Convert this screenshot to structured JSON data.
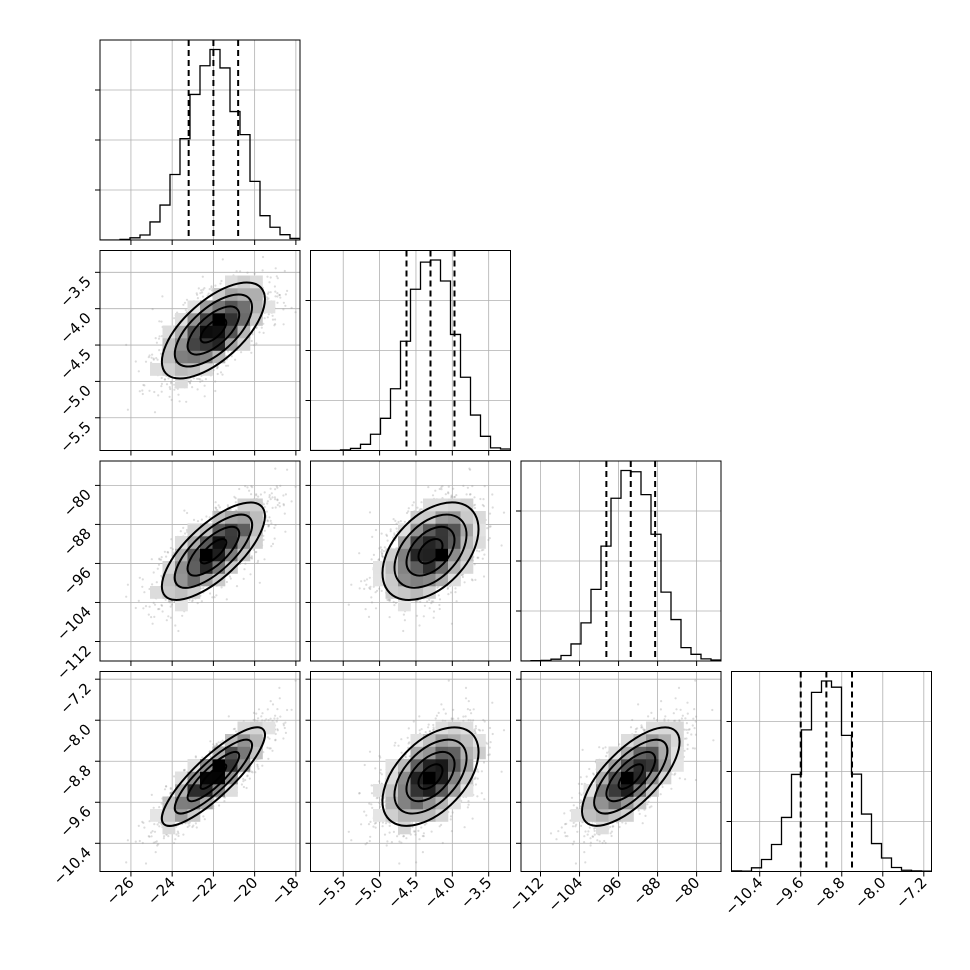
{
  "chart_data": {
    "type": "corner",
    "params": [
      {
        "range": [
          -27.5,
          -17.8
        ],
        "ticks": [
          -26,
          -24,
          -22,
          -20,
          -18
        ],
        "labels": [
          "−26",
          "−24",
          "−22",
          "−20",
          "−18"
        ],
        "mean": -22.0,
        "sd": 1.25,
        "quantiles": [
          -23.2,
          -22.0,
          -20.8
        ]
      },
      {
        "range": [
          -5.95,
          -3.2
        ],
        "ticks": [
          -5.5,
          -5.0,
          -4.5,
          -4.0,
          -3.5
        ],
        "labels": [
          "−5.5",
          "−5.0",
          "−4.5",
          "−4.0",
          "−3.5"
        ],
        "mean": -4.3,
        "sd": 0.33,
        "quantiles": [
          -4.63,
          -4.3,
          -3.97
        ]
      },
      {
        "range": [
          -116,
          -75
        ],
        "ticks": [
          -112,
          -104,
          -96,
          -88,
          -80
        ],
        "labels": [
          "−112",
          "−104",
          "−96",
          "−88",
          "−80"
        ],
        "mean": -93.5,
        "sd": 5.0,
        "quantiles": [
          -98.5,
          -93.5,
          -88.5
        ]
      },
      {
        "range": [
          -10.95,
          -7.05
        ],
        "ticks": [
          -10.4,
          -9.6,
          -8.8,
          -8.0,
          -7.2
        ],
        "labels": [
          "−10.4",
          "−9.6",
          "−8.8",
          "−8.0",
          "−7.2"
        ],
        "mean": -9.1,
        "sd": 0.48,
        "quantiles": [
          -9.6,
          -9.1,
          -8.6
        ]
      }
    ],
    "correlations": [
      [
        1,
        0.65,
        0.72,
        0.85
      ],
      [
        0.65,
        1,
        0.45,
        0.5
      ],
      [
        0.72,
        0.45,
        1,
        0.7
      ],
      [
        0.85,
        0.5,
        0.7,
        1
      ]
    ],
    "hist_bins": 20,
    "grid": true,
    "contour_levels": [
      0.5,
      1.0,
      1.5,
      2.0
    ]
  }
}
